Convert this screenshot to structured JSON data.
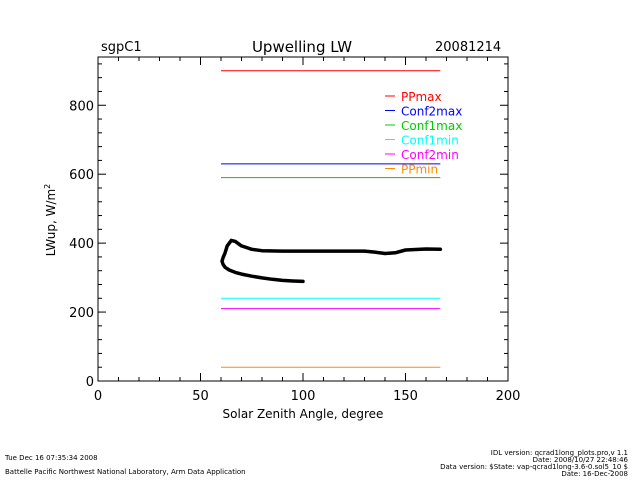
{
  "header": {
    "site": "sgpC1",
    "title": "Upwelling LW",
    "date": "20081214"
  },
  "chart_data": {
    "type": "line",
    "xlabel": "Solar Zenith Angle, degree",
    "ylabel": "LWup, W/m",
    "ylabel_sup": "2",
    "xlim": [
      0,
      200
    ],
    "ylim": [
      0,
      940
    ],
    "xticks": [
      0,
      50,
      100,
      150,
      200
    ],
    "yticks": [
      0,
      200,
      400,
      600,
      800
    ],
    "legend_position": "top-right",
    "limits": [
      {
        "name": "PPmax",
        "value": 900,
        "x": [
          60,
          167
        ],
        "color": "#ff0000"
      },
      {
        "name": "Conf2max",
        "value": 630,
        "x": [
          60,
          167
        ],
        "color": "#0000ff"
      },
      {
        "name": "Conf1max",
        "value": 590,
        "x": [
          60,
          167
        ],
        "color": "#00cc00"
      },
      {
        "name": "Conf1min",
        "value": 240,
        "x": [
          60,
          167
        ],
        "color": "#00ffff"
      },
      {
        "name": "Conf2min",
        "value": 210,
        "x": [
          60,
          167
        ],
        "color": "#ff00ff"
      },
      {
        "name": "PPmin",
        "value": 40,
        "x": [
          60,
          167
        ],
        "color": "#ff8c00"
      }
    ],
    "series": [
      {
        "color": "#000000",
        "x": [
          167,
          160,
          150,
          145,
          140,
          135,
          130,
          120,
          110,
          100,
          90,
          80,
          75,
          70,
          67,
          65,
          63,
          62,
          61,
          60.5,
          61,
          62,
          64,
          67,
          70,
          75,
          80,
          85,
          90,
          95,
          100
        ],
        "y": [
          382,
          383,
          380,
          372,
          370,
          374,
          377,
          377,
          377,
          377,
          377,
          378,
          382,
          392,
          405,
          408,
          392,
          372,
          358,
          348,
          338,
          330,
          322,
          315,
          310,
          304,
          299,
          295,
          292,
          290,
          289
        ]
      }
    ]
  },
  "footer": {
    "timestamp": "Tue Dec 16 07:35:34 2008",
    "lab": "Battelle Pacific Northwest National Laboratory, Arm Data Application",
    "idl_version": "IDL version: qcrad1long_plots.pro,v 1.1",
    "file_date": "Date: 2008/10/27 22:48:46",
    "data_version": "Data version: $State: vap-qcrad1long-3.6-0.sol5_10 $",
    "data_date": "Date: 16-Dec-2008"
  }
}
